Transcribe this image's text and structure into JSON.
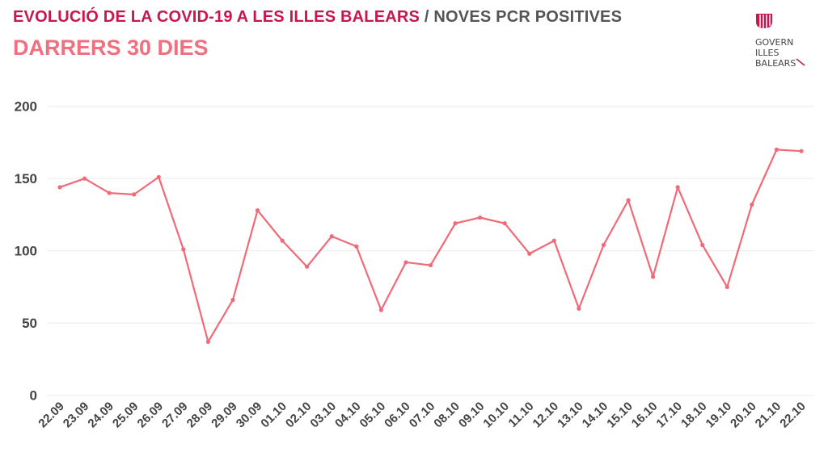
{
  "header": {
    "title_main": "EVOLUCIÓ DE LA COVID-19 A LES ILLES BALEARS",
    "title_sep": " / ",
    "title_sub": "NOVES PCR POSITIVES",
    "subtitle": "DARRERS 30 DIES",
    "logo_lines": [
      "GOVERN",
      "ILLES",
      "BALEARS"
    ]
  },
  "colors": {
    "line": "#f06a78",
    "title": "#c8174e",
    "subtitle": "#f07080",
    "grid": "#ebebeb"
  },
  "chart_data": {
    "type": "line",
    "title": "EVOLUCIÓ DE LA COVID-19 A LES ILLES BALEARS / NOVES PCR POSITIVES - DARRERS 30 DIES",
    "xlabel": "",
    "ylabel": "",
    "ylim": [
      0,
      200
    ],
    "yticks": [
      0,
      50,
      100,
      150,
      200
    ],
    "grid": true,
    "categories": [
      "22.09",
      "23.09",
      "24.09",
      "25.09",
      "26.09",
      "27.09",
      "28.09",
      "29.09",
      "30.09",
      "01.10",
      "02.10",
      "03.10",
      "04.10",
      "05.10",
      "06.10",
      "07.10",
      "08.10",
      "09.10",
      "10.10",
      "11.10",
      "12.10",
      "13.10",
      "14.10",
      "15.10",
      "16.10",
      "17.10",
      "18.10",
      "19.10",
      "20.10",
      "21.10",
      "22.10"
    ],
    "series": [
      {
        "name": "Noves PCR positives",
        "values": [
          144,
          150,
          140,
          139,
          151,
          101,
          37,
          66,
          128,
          107,
          89,
          110,
          103,
          59,
          92,
          90,
          119,
          123,
          119,
          98,
          107,
          60,
          104,
          135,
          82,
          144,
          104,
          75,
          132,
          170,
          169
        ]
      }
    ]
  }
}
